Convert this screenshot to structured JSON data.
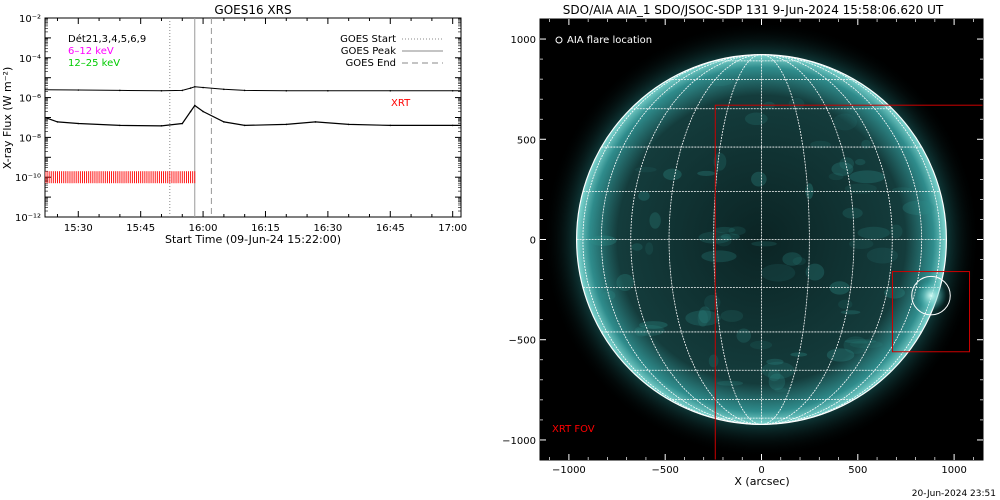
{
  "chart_data": [
    {
      "type": "line",
      "title": "GOES16 XRS",
      "xlabel": "Start Time (09-Jun-24 15:22:00)",
      "ylabel": "X-ray Flux (W m⁻²)",
      "y_scale": "log",
      "ylim": [
        1e-12,
        0.01
      ],
      "xlim": [
        "15:22",
        "17:02"
      ],
      "x_tick_labels": [
        "15:30",
        "15:45",
        "16:00",
        "16:15",
        "16:30",
        "16:45",
        "17:00"
      ],
      "y_tick_labels": [
        "10⁻¹²",
        "10⁻¹⁰",
        "10⁻⁸",
        "10⁻⁶",
        "10⁻⁴",
        "10⁻²"
      ],
      "grid": false,
      "legend_placement": "top-right",
      "upper_left_labels": [
        "Dét21,3,4,5,6,9",
        "6–12 keV",
        "12–25 keV"
      ],
      "annotations": [
        "XRT"
      ],
      "legend": [
        "GOES Start",
        "GOES Peak",
        "GOES End"
      ],
      "events": {
        "goes_start": "15:52",
        "goes_peak": "15:58",
        "goes_end": "16:02"
      },
      "series": [
        {
          "name": "",
          "color": "#000000",
          "x": [
            "15:22",
            "15:30",
            "15:40",
            "15:50",
            "15:55",
            "15:57",
            "15:58",
            "16:00",
            "16:05",
            "16:10",
            "16:20",
            "16:30",
            "16:45",
            "17:00",
            "17:02"
          ],
          "y": [
            2.5e-06,
            2.4e-06,
            2.3e-06,
            2.2e-06,
            2.3e-06,
            3e-06,
            3.5e-06,
            3.2e-06,
            2.6e-06,
            2.3e-06,
            2.2e-06,
            2.2e-06,
            2.2e-06,
            2.2e-06,
            2.2e-06
          ]
        },
        {
          "name": "",
          "color": "#000000",
          "x": [
            "15:22",
            "15:25",
            "15:30",
            "15:40",
            "15:50",
            "15:55",
            "15:57",
            "15:58",
            "16:00",
            "16:05",
            "16:10",
            "16:20",
            "16:27",
            "16:35",
            "16:45",
            "17:00",
            "17:02"
          ],
          "y": [
            1e-07,
            6e-08,
            5e-08,
            4e-08,
            3.8e-08,
            5e-08,
            2e-07,
            4e-07,
            2e-07,
            6e-08,
            4e-08,
            4.5e-08,
            6e-08,
            4.5e-08,
            4e-08,
            4e-08,
            4e-08
          ]
        }
      ],
      "xrt_coverage": {
        "color": "#ff0000",
        "level": 1e-10,
        "from": "15:22",
        "to": "15:58"
      }
    },
    {
      "type": "image",
      "title": "SDO/AIA AIA_1 SDO/JSOC-SDP 131  9-Jun-2024 15:58:06.620 UT",
      "xlabel": "X (arcsec)",
      "ylabel": "",
      "xlim": [
        -1150,
        1150
      ],
      "ylim": [
        -1100,
        1100
      ],
      "x_tick_labels": [
        "−1000",
        "−500",
        "0",
        "500",
        "1000"
      ],
      "y_tick_labels": [
        "−1000",
        "−500",
        "0",
        "500",
        "1000"
      ],
      "legend": [
        "AIA flare location"
      ],
      "annotations": [
        "XRT FOV"
      ],
      "solar_radius_arcsec": 960,
      "grid_spacing_deg": 15,
      "xrt_fov": {
        "x": [
          -240,
          1190
        ],
        "y": [
          -1140,
          670
        ],
        "color": "#cc0000"
      },
      "flare_box": {
        "x": [
          680,
          1080
        ],
        "y": [
          -560,
          -160
        ],
        "color": "#cc0000"
      },
      "flare_location": {
        "x": 880,
        "y": -280,
        "radius": 100
      },
      "colors": {
        "background": "#000000",
        "disk": "#0d2a2a",
        "limb": "#2a8c8c",
        "grid": "#ffffff"
      }
    }
  ],
  "footer": {
    "timestamp": "20-Jun-2024 23:51"
  }
}
